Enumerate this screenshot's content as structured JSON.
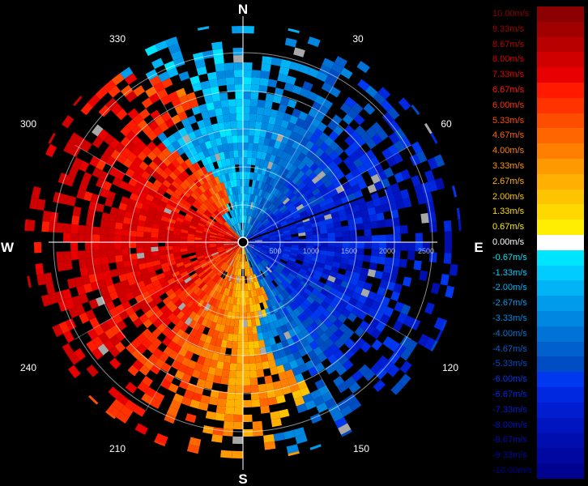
{
  "radar": {
    "compass": {
      "north": "N",
      "east": "E",
      "south": "S",
      "west": "W"
    },
    "azimuth_labels": [
      "30",
      "60",
      "120",
      "150",
      "210",
      "240",
      "300",
      "330"
    ],
    "range_labels": [
      "500",
      "1000",
      "1500",
      "2000",
      "2500"
    ]
  },
  "legend": {
    "entries": [
      {
        "label": "10.00m/s",
        "color": "#8b0000"
      },
      {
        "label": "9.33m/s",
        "color": "#a00000"
      },
      {
        "label": "8.67m/s",
        "color": "#b80000"
      },
      {
        "label": "8.00m/s",
        "color": "#d00000"
      },
      {
        "label": "7.33m/s",
        "color": "#e80000"
      },
      {
        "label": "6.67m/s",
        "color": "#ff1a00"
      },
      {
        "label": "6.00m/s",
        "color": "#ff3300"
      },
      {
        "label": "5.33m/s",
        "color": "#ff4d00"
      },
      {
        "label": "4.67m/s",
        "color": "#ff6600"
      },
      {
        "label": "4.00m/s",
        "color": "#ff8000"
      },
      {
        "label": "3.33m/s",
        "color": "#ff9900"
      },
      {
        "label": "2.67m/s",
        "color": "#ffb000"
      },
      {
        "label": "2.00m/s",
        "color": "#ffc400"
      },
      {
        "label": "1.33m/s",
        "color": "#ffd800"
      },
      {
        "label": "0.67m/s",
        "color": "#ffee00"
      },
      {
        "label": "0.00m/s",
        "color": "#ffffff"
      },
      {
        "label": "-0.67m/s",
        "color": "#00e5ff"
      },
      {
        "label": "-1.33m/s",
        "color": "#00ccff"
      },
      {
        "label": "-2.00m/s",
        "color": "#00b4f5"
      },
      {
        "label": "-2.67m/s",
        "color": "#009ceb"
      },
      {
        "label": "-3.33m/s",
        "color": "#0088e0"
      },
      {
        "label": "-4.00m/s",
        "color": "#0074d6"
      },
      {
        "label": "-4.67m/s",
        "color": "#0060cc"
      },
      {
        "label": "-5.33m/s",
        "color": "#004cc2"
      },
      {
        "label": "-6.00m/s",
        "color": "#0038f0"
      },
      {
        "label": "-6.67m/s",
        "color": "#0028e0"
      },
      {
        "label": "-7.33m/s",
        "color": "#001ed0"
      },
      {
        "label": "-8.00m/s",
        "color": "#0014c0"
      },
      {
        "label": "-8.67m/s",
        "color": "#000eb0"
      },
      {
        "label": "-9.33m/s",
        "color": "#0008a0"
      },
      {
        "label": "-10.00m/s",
        "color": "#000290"
      }
    ]
  }
}
